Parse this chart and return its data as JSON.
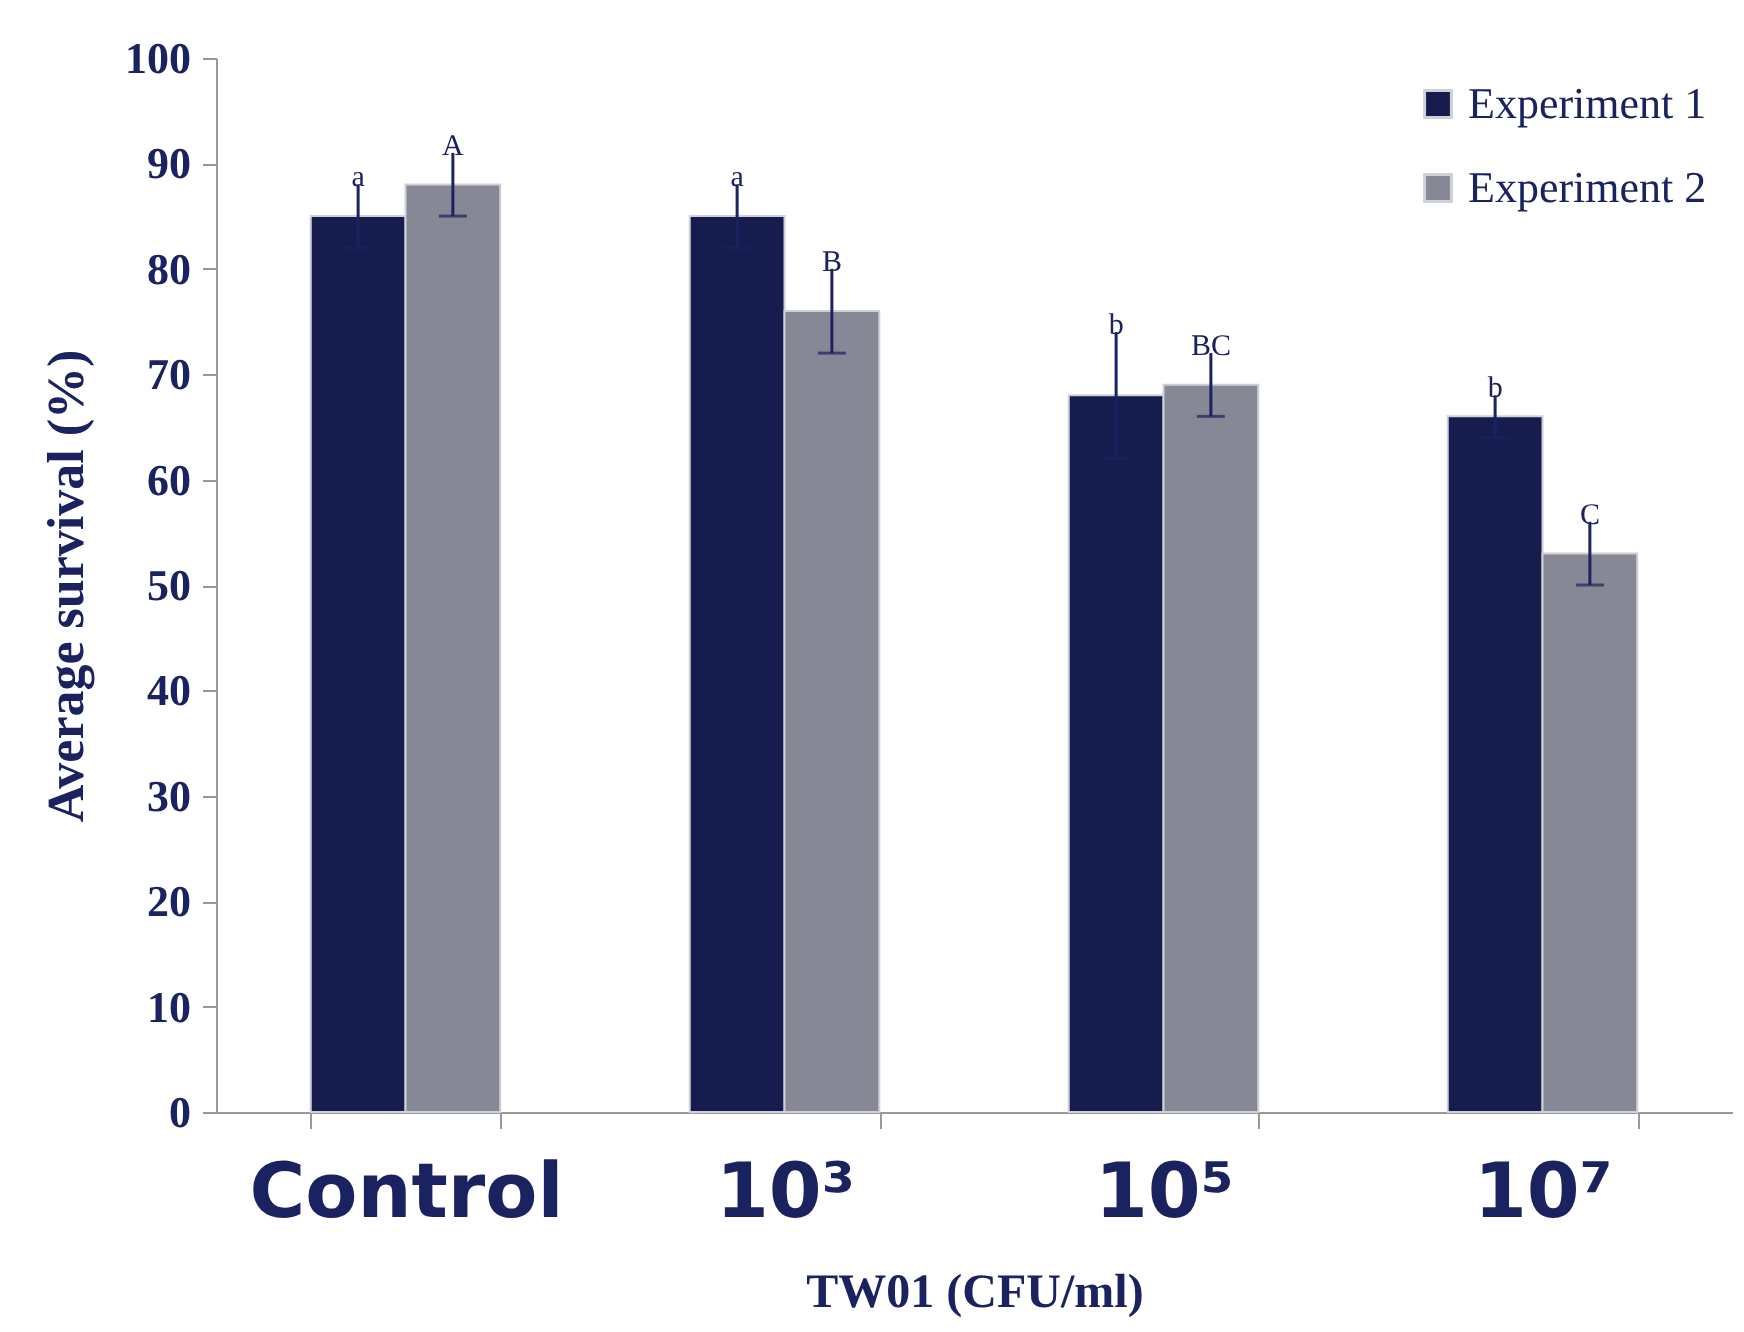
{
  "chart_data": {
    "type": "bar",
    "xlabel": "TW01 (CFU/ml)",
    "ylabel": "Average survival (%)",
    "categories": [
      "Control",
      "10³",
      "10⁵",
      "10⁷"
    ],
    "series": [
      {
        "name": "Experiment 1",
        "color": "#161d4e",
        "values": [
          85,
          85,
          68,
          66
        ],
        "errors": [
          3,
          3,
          6,
          2
        ]
      },
      {
        "name": "Experiment 2",
        "color": "#878896",
        "values": [
          88,
          76,
          69,
          53
        ],
        "errors": [
          3,
          4,
          3,
          3
        ]
      }
    ],
    "ylim": [
      0,
      100
    ],
    "yticks": [
      0,
      10,
      20,
      30,
      40,
      50,
      60,
      70,
      80,
      90,
      100
    ],
    "grid": false,
    "legend": "top right",
    "annotations": [
      "a",
      "A",
      "a",
      "B",
      "b",
      "BC",
      "b",
      "C"
    ]
  }
}
